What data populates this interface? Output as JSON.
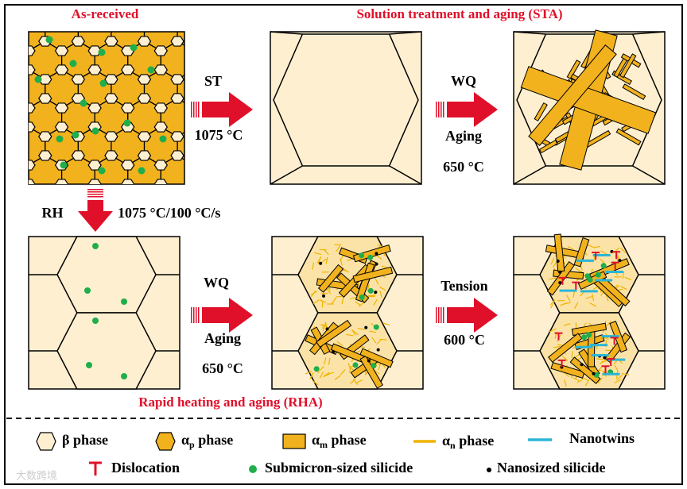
{
  "header": {
    "left_title": "As-received",
    "right_title": "Solution treatment and aging (STA)"
  },
  "steps": {
    "st": {
      "label": "ST",
      "temperature": "1075 °C"
    },
    "sta_aging": {
      "label": "WQ",
      "process": "Aging",
      "temperature": "650 °C"
    },
    "rh": {
      "label": "RH",
      "condition": "1075 °C/100 °C/s"
    },
    "rha_aging": {
      "label": "WQ",
      "process": "Aging",
      "temperature": "650 °C"
    },
    "tension": {
      "label": "Tension",
      "temperature": "600 °C"
    }
  },
  "footer_title": "Rapid heating and aging (RHA)",
  "legend": [
    {
      "text": "β phase"
    },
    {
      "symbol": "α",
      "subscript": "p",
      "text": " phase"
    },
    {
      "symbol": "α",
      "subscript": "m",
      "text": " phase"
    },
    {
      "symbol": "α",
      "subscript": "n",
      "text": " phase"
    },
    {
      "text": "Nanotwins"
    },
    {
      "text": "Dislocation"
    },
    {
      "text": "Submicron-sized silicide"
    },
    {
      "text": "Nanosized silicide"
    }
  ],
  "watermark": "大数跨境"
}
